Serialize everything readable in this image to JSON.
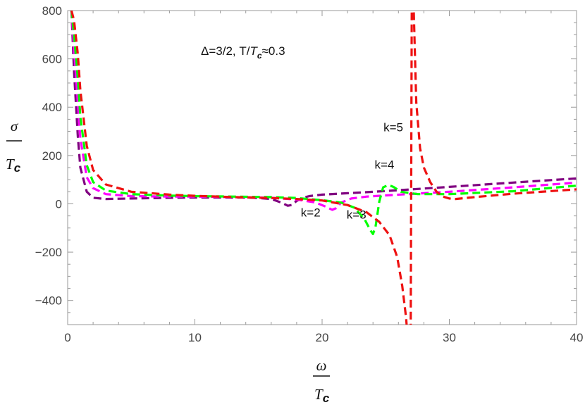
{
  "chart_data": {
    "type": "line",
    "title": "Δ=3/2,  T/T_c≈0.3",
    "title_parts": {
      "prefix": "Δ=3/2,  T/",
      "italic": "T",
      "sub": "c",
      "suffix": "≈0.3"
    },
    "xlabel": {
      "numer": "ω",
      "denom_sym": "T",
      "denom_sub": "c"
    },
    "ylabel": {
      "numer": "σ",
      "denom_sym": "T",
      "denom_sub": "c"
    },
    "xlim": [
      0,
      40
    ],
    "ylim": [
      -500,
      800
    ],
    "xticks": [
      0,
      10,
      20,
      30,
      40
    ],
    "yticks": [
      -400,
      -200,
      0,
      200,
      400,
      600,
      800
    ],
    "yticks_display": [
      "−400",
      "−200",
      "0",
      "200",
      "400",
      "600",
      "800"
    ],
    "grid": false,
    "series": [
      {
        "name": "k=2",
        "color": "#800080",
        "x": [
          0.3,
          0.5,
          0.8,
          1.0,
          1.5,
          2,
          3,
          5,
          8,
          10,
          12,
          14,
          15,
          16,
          16.8,
          17.3,
          17.6,
          18.0,
          18.5,
          19,
          20,
          22,
          25,
          30,
          35,
          40
        ],
        "y": [
          800,
          550,
          280,
          150,
          50,
          25,
          20,
          22,
          25,
          26,
          26,
          26,
          24,
          20,
          5,
          -8,
          -5,
          12,
          25,
          32,
          38,
          44,
          53,
          70,
          88,
          105
        ]
      },
      {
        "name": "k=3",
        "color": "#ff00ff",
        "x": [
          0.3,
          0.5,
          0.8,
          1.0,
          1.5,
          2,
          3,
          5,
          8,
          10,
          13,
          16,
          18,
          19.5,
          20.3,
          20.8,
          21.1,
          21.5,
          22.3,
          23.5,
          25,
          30,
          35,
          40
        ],
        "y": [
          800,
          650,
          420,
          270,
          110,
          65,
          40,
          32,
          30,
          30,
          28,
          25,
          18,
          5,
          -12,
          -25,
          -18,
          5,
          22,
          30,
          35,
          50,
          68,
          88
        ]
      },
      {
        "name": "k=4",
        "color": "#00ff00",
        "x": [
          0.3,
          0.5,
          0.8,
          1.0,
          1.5,
          2,
          3,
          5,
          8,
          10,
          13,
          16,
          18,
          20,
          21.5,
          22.5,
          23.3,
          23.8,
          24.0,
          24.2,
          24.5,
          24.8,
          25.2,
          25.6,
          26.2,
          27.5,
          30,
          35,
          40
        ],
        "y": [
          800,
          700,
          520,
          360,
          160,
          90,
          55,
          40,
          34,
          32,
          30,
          28,
          24,
          15,
          5,
          -15,
          -60,
          -110,
          -125,
          -95,
          10,
          68,
          78,
          70,
          50,
          40,
          40,
          52,
          75
        ]
      },
      {
        "name": "k=5",
        "color": "#ee1111",
        "x": [
          0.3,
          0.5,
          0.8,
          1.0,
          1.5,
          2,
          3,
          5,
          8,
          10,
          13,
          16,
          18,
          20,
          22,
          23.5,
          24.5,
          25.3,
          25.9,
          26.3,
          26.6,
          26.8,
          26.95,
          27.05,
          27.2,
          27.4,
          27.7,
          28,
          28.5,
          29,
          29.5,
          30,
          30.5,
          32,
          35,
          40
        ],
        "y": [
          800,
          760,
          620,
          470,
          240,
          140,
          80,
          50,
          38,
          33,
          28,
          24,
          20,
          14,
          -5,
          -35,
          -75,
          -130,
          -220,
          -340,
          -470,
          -600,
          -800,
          900,
          800,
          420,
          230,
          150,
          90,
          50,
          30,
          22,
          20,
          28,
          42,
          60
        ]
      }
    ],
    "annotations": [
      {
        "text": "k=2",
        "x": 19.1,
        "y": -52
      },
      {
        "text": "k=3",
        "x": 22.7,
        "y": -62
      },
      {
        "text": "k=4",
        "x": 24.9,
        "y": 145
      },
      {
        "text": "k=5",
        "x": 25.6,
        "y": 300
      }
    ]
  }
}
